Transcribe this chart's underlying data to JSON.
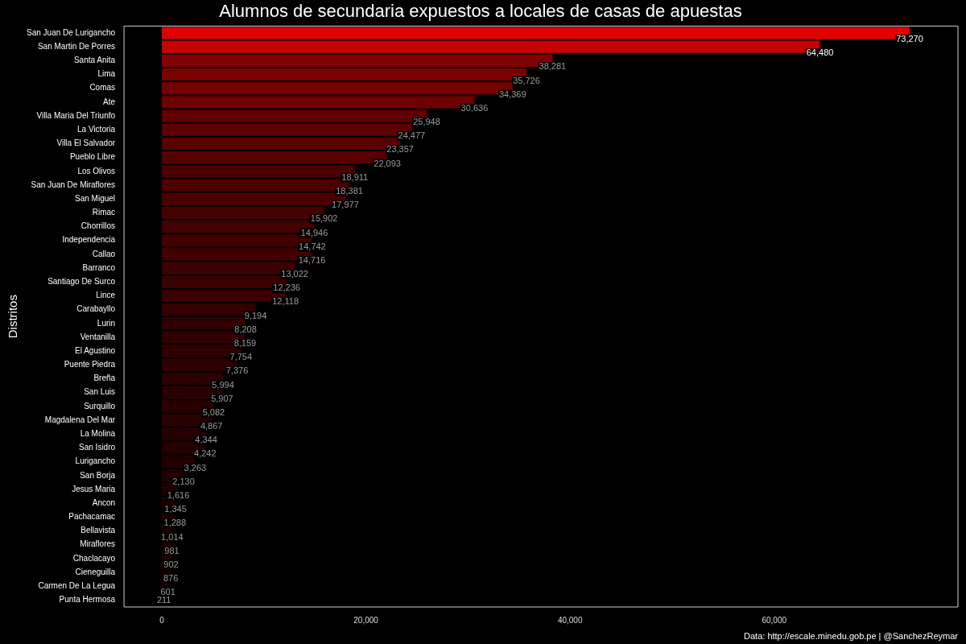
{
  "chart_data": {
    "type": "bar",
    "orientation": "horizontal",
    "title": "Alumnos de secundaria expuestos a locales de casas de apuestas",
    "ylabel": "Distritos",
    "categories": [
      "San Juan De Lurigancho",
      "San Martin De Porres",
      "Santa Anita",
      "Lima",
      "Comas",
      "Ate",
      "Villa Maria Del Triunfo",
      "La Victoria",
      "Villa El Salvador",
      "Pueblo Libre",
      "Los Olivos",
      "San Juan De Miraflores",
      "San Miguel",
      "Rimac",
      "Chorrillos",
      "Independencia",
      "Callao",
      "Barranco",
      "Santiago De Surco",
      "Lince",
      "Carabayllo",
      "Lurin",
      "Ventanilla",
      "El Agustino",
      "Puente Piedra",
      "Breña",
      "San Luis",
      "Surquillo",
      "Magdalena Del Mar",
      "La Molina",
      "San Isidro",
      "Lurigancho",
      "San Borja",
      "Jesus Maria",
      "Ancon",
      "Pachacamac",
      "Bellavista",
      "Miraflores",
      "Chaclacayo",
      "Cieneguilla",
      "Carmen De La Legua",
      "Punta Hermosa"
    ],
    "values": [
      73270,
      64480,
      38281,
      35726,
      34369,
      30636,
      25948,
      24477,
      23357,
      22093,
      18911,
      18381,
      17977,
      15902,
      14946,
      14742,
      14716,
      13022,
      12236,
      12118,
      9194,
      8208,
      8159,
      7754,
      7376,
      5994,
      5907,
      5082,
      4867,
      4344,
      4242,
      3263,
      2130,
      1616,
      1345,
      1288,
      1014,
      981,
      902,
      876,
      601,
      211
    ],
    "colors": [
      "#e00000",
      "#c80000",
      "#810000",
      "#7a0000",
      "#770000",
      "#6d0000",
      "#600000",
      "#5c0000",
      "#590000",
      "#560000",
      "#4d0000",
      "#4c0000",
      "#4b0000",
      "#450000",
      "#420000",
      "#420000",
      "#420000",
      "#3d0000",
      "#3b0000",
      "#3b0000",
      "#330000",
      "#300000",
      "#300000",
      "#2f0000",
      "#2e0000",
      "#2a0000",
      "#2a0000",
      "#280000",
      "#270000",
      "#260000",
      "#250000",
      "#230000",
      "#200000",
      "#1e0000",
      "#1e0000",
      "#1d0000",
      "#1d0000",
      "#1d0000",
      "#1c0000",
      "#1c0000",
      "#1c0000",
      "#1b0000"
    ],
    "xlim": [
      -3700,
      78000
    ],
    "xticks": [
      {
        "value": 0,
        "label": "0"
      },
      {
        "value": 20000,
        "label": "20,000"
      },
      {
        "value": 40000,
        "label": "40,000"
      },
      {
        "value": 60000,
        "label": "60,000"
      }
    ],
    "value_labels": [
      "73,270",
      "64,480",
      "38,281",
      "35,726",
      "34,369",
      "30,636",
      "25,948",
      "24,477",
      "23,357",
      "22,093",
      "18,911",
      "18,381",
      "17,977",
      "15,902",
      "14,946",
      "14,742",
      "14,716",
      "13,022",
      "12,236",
      "12,118",
      "9,194",
      "8,208",
      "8,159",
      "7,754",
      "7,376",
      "5,994",
      "5,907",
      "5,082",
      "4,867",
      "4,344",
      "4,242",
      "3,263",
      "2,130",
      "1,616",
      "1,345",
      "1,288",
      "1,014",
      "981",
      "902",
      "876",
      "601",
      "211"
    ],
    "grid": false,
    "legend": false,
    "annotations": [
      "Data: http://escale.minedu.gob.pe | @SanchezReymar"
    ]
  }
}
